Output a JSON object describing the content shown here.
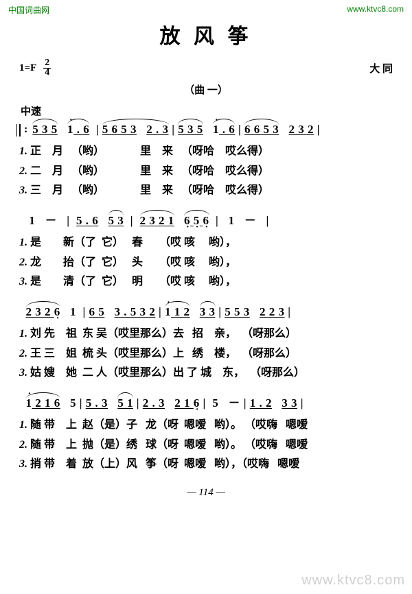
{
  "watermarks": {
    "top_left": "中国词曲网",
    "top_right": "www.ktvc8.com",
    "bottom_right": "www.ktvc8.com"
  },
  "title": "放 风 筝",
  "key": "1=F",
  "time_signature": {
    "num": "2",
    "den": "4"
  },
  "composer": "大  同",
  "subtitle": "（曲 一）",
  "tempo": "中速",
  "systems": [
    {
      "notes": "‖: 5 3 5   1̇ . 6  | 5 6 5 3   2 . 3  | 5 3 5   1̇ . 6  | 6 6 5 3   2 3 2  |",
      "lyrics": [
        "1. 正    月   （哟）             里    来   （呀哈    哎么得）",
        "2. 二    月   （哟）             里    来   （呀哈    哎么得）",
        "3. 三    月   （哟）             里    来   （呀哈    哎么得）"
      ]
    },
    {
      "notes": "   1   －   |  5 . 6    5 3   |  2 3 2 1    6̣ 5̣ 6̣   |   1   －   |",
      "lyrics": [
        "1. 是        新（了  它）   春      （哎 咳     哟），",
        "2. 龙        抬（了  它）   头      （哎 咳     哟），",
        "3. 是        清（了  它）   明      （哎 咳     哟），"
      ]
    },
    {
      "notes": "  2 3 2 6̣   1  | 6 5   3 . 5 3 2  | 1̇ 1 2   3 3  | 5 5 3   2 2 3  |",
      "lyrics": [
        "1. 刘 先    祖  东 吴（哎里那么）去   招    亲，  （呀那么）",
        "2. 王 三    姐  梳 头（哎里那么）上   绣    楼，  （呀那么）",
        "3. 姑 嫂    她  二 人（哎里那么）出 了 城    东，  （呀那么）"
      ]
    },
    {
      "notes": "  1̇ 2 1 6   5  | 5 . 3   5 1  | 2 . 3   2 1 6̣  |  5   －  | 1 . 2   3 3  |",
      "lyrics": [
        "1. 随 带    上  赵（是）子   龙（呀  嗯嗳   哟）。 （哎嗨   嗯嗳",
        "2. 随 带    上  抛（是）绣   球（呀  嗯嗳   哟）。 （哎嗨   嗯嗳",
        "3. 捎 带    着  放（上）风   筝（呀  嗯嗳   哟），（哎嗨   嗯嗳"
      ]
    }
  ],
  "page_number": "— 114 —",
  "colors": {
    "text": "#000000",
    "background": "#ffffff",
    "watermark_green": "#008000",
    "watermark_gray": "#d0d0d0"
  }
}
